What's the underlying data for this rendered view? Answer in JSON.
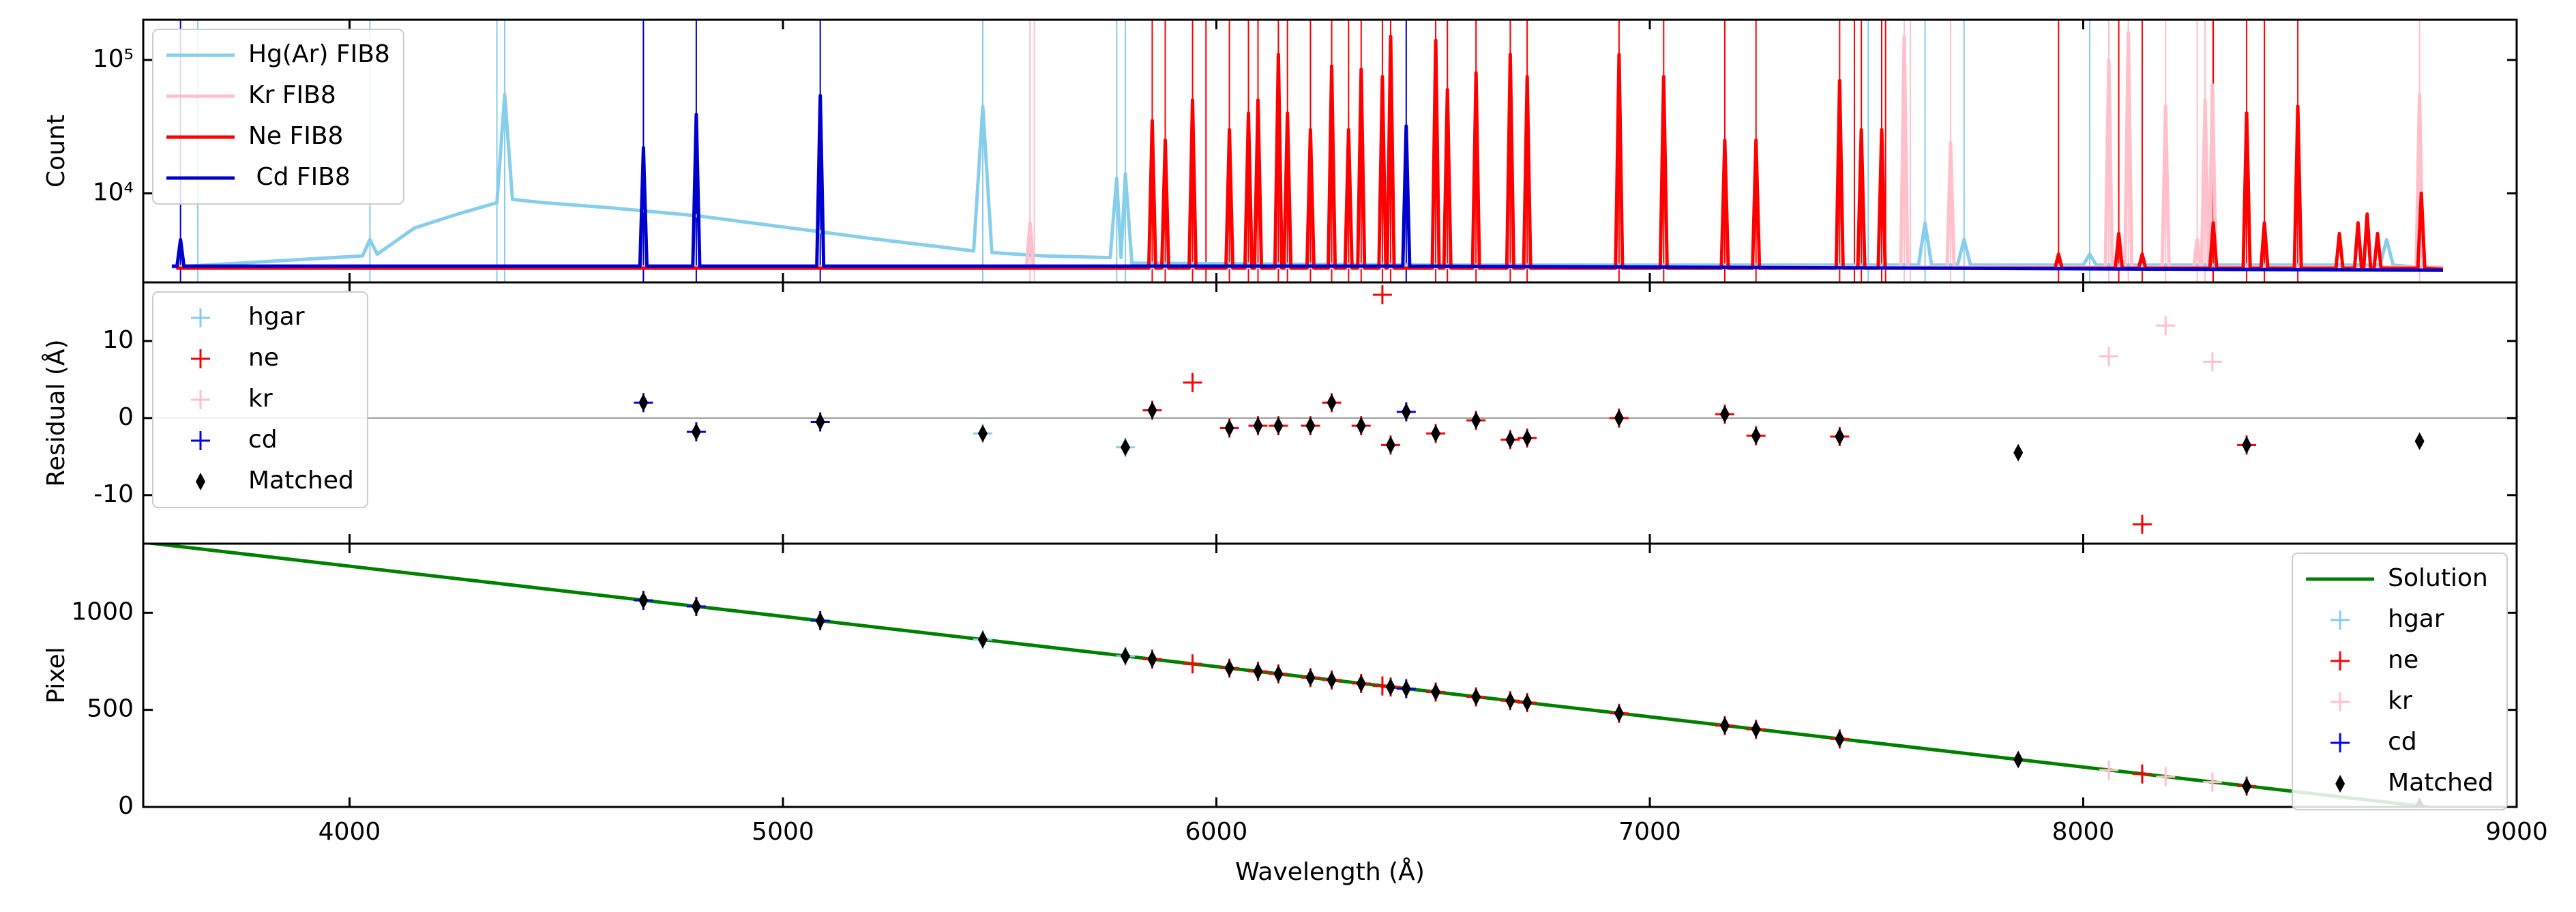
{
  "chart_data": [
    {
      "type": "line",
      "ylabel": "Count",
      "log_y": true,
      "legend": "upper left",
      "xlim": [
        3524,
        9000
      ],
      "xticks": [
        4000,
        5000,
        6000,
        7000,
        8000,
        9000
      ],
      "ylim": [
        2150,
        200000
      ],
      "yticks": [
        {
          "value": 10000,
          "label": "10⁴"
        },
        {
          "value": 100000,
          "label": "10⁵"
        }
      ],
      "series": [
        {
          "name": "Hg(Ar) FIB8",
          "color": "#87ceeb",
          "style": "line",
          "catalog_lines": [
            3650,
            4047,
            4340,
            4358,
            5461,
            5770,
            5790,
            7504,
            7635,
            7725,
            8015
          ],
          "x": [
            3590,
            4030,
            4047,
            4064,
            4150,
            4250,
            4340,
            4358,
            4376,
            4450,
            4600,
            4800,
            5000,
            5200,
            5440,
            5461,
            5482,
            5600,
            5755,
            5770,
            5780,
            5790,
            5805,
            6500,
            7000,
            7620,
            7635,
            7650,
            7710,
            7725,
            7740,
            8000,
            8015,
            8030,
            8685,
            8700,
            8715,
            8830
          ],
          "values": [
            2800,
            3400,
            4500,
            3500,
            5500,
            7000,
            8500,
            55000,
            9000,
            8500,
            7800,
            6800,
            5600,
            4600,
            3700,
            45000,
            3600,
            3400,
            3300,
            13000,
            3300,
            14000,
            3000,
            2900,
            2900,
            2900,
            6000,
            2900,
            2900,
            4500,
            2900,
            2900,
            3500,
            2900,
            2900,
            4500,
            2900,
            2700
          ]
        },
        {
          "name": "Kr FIB8",
          "color": "#ffc0cb",
          "style": "line",
          "catalog_lines": [
            5570,
            5580,
            7587,
            7601,
            7694,
            8059,
            8104,
            8190,
            8263,
            8281,
            8298,
            8776
          ],
          "x": [
            3600,
            5562,
            5570,
            5578,
            7579,
            7587,
            7595,
            7686,
            7694,
            7702,
            8051,
            8059,
            8067,
            8096,
            8104,
            8112,
            8182,
            8190,
            8198,
            8255,
            8263,
            8271,
            8273,
            8281,
            8289,
            8290,
            8298,
            8306,
            8768,
            8776,
            8784,
            8830
          ],
          "values": [
            2800,
            2800,
            6000,
            2800,
            2800,
            150000,
            2800,
            2800,
            24000,
            2800,
            2800,
            100000,
            2800,
            2800,
            160000,
            2800,
            2800,
            45000,
            2800,
            2800,
            4500,
            2800,
            2800,
            50000,
            2800,
            2800,
            65000,
            2800,
            2800,
            55000,
            2800,
            2800
          ]
        },
        {
          "name": "Ne FIB8",
          "color": "#ff0000",
          "style": "line",
          "catalog_lines": [
            5852,
            5882,
            5945,
            5976,
            6030,
            6074,
            6096,
            6143,
            6164,
            6217,
            6266,
            6305,
            6334,
            6383,
            6402,
            6506,
            6533,
            6599,
            6678,
            6717,
            6929,
            7032,
            7173,
            7245,
            7438,
            7472,
            7488,
            7535,
            7544,
            7943,
            8082,
            8136,
            8300,
            8377,
            8418,
            8495
          ],
          "x": [
            3600,
            5844,
            5852,
            5860,
            5874,
            5882,
            5890,
            5937,
            5945,
            5953,
            6022,
            6030,
            6038,
            6066,
            6074,
            6082,
            6088,
            6096,
            6104,
            6135,
            6143,
            6151,
            6156,
            6164,
            6172,
            6209,
            6217,
            6225,
            6258,
            6266,
            6274,
            6297,
            6305,
            6313,
            6326,
            6334,
            6342,
            6375,
            6383,
            6391,
            6394,
            6402,
            6410,
            6498,
            6506,
            6514,
            6525,
            6533,
            6541,
            6591,
            6599,
            6607,
            6670,
            6678,
            6686,
            6709,
            6717,
            6725,
            6921,
            6929,
            6937,
            7024,
            7032,
            7040,
            7165,
            7173,
            7181,
            7237,
            7245,
            7253,
            7430,
            7438,
            7446,
            7480,
            7488,
            7496,
            7527,
            7535,
            7543,
            7935,
            7943,
            7951,
            8074,
            8082,
            8090,
            8128,
            8136,
            8144,
            8292,
            8300,
            8308,
            8369,
            8377,
            8385,
            8410,
            8418,
            8426,
            8487,
            8495,
            8503,
            8583,
            8591,
            8599,
            8626,
            8634,
            8642,
            8647,
            8655,
            8663,
            8671,
            8679,
            8687,
            8772,
            8780,
            8788,
            8830
          ],
          "values": [
            2750,
            2750,
            35000,
            2750,
            2750,
            25000,
            2750,
            2750,
            50000,
            2750,
            2750,
            30000,
            2750,
            2750,
            40000,
            2750,
            2750,
            50000,
            2750,
            2750,
            110000,
            2750,
            2750,
            40000,
            2750,
            2750,
            30000,
            2750,
            2750,
            90000,
            2750,
            2750,
            30000,
            2750,
            2750,
            85000,
            2750,
            2750,
            75000,
            2750,
            2750,
            150000,
            2750,
            2750,
            140000,
            2750,
            2750,
            60000,
            2750,
            2750,
            80000,
            2750,
            2750,
            110000,
            2750,
            2750,
            75000,
            2750,
            2750,
            110000,
            2750,
            2750,
            75000,
            2750,
            2750,
            25000,
            2750,
            2750,
            25000,
            2750,
            2750,
            70000,
            2750,
            2750,
            30000,
            2750,
            2750,
            30000,
            2750,
            2750,
            3500,
            2750,
            2750,
            5000,
            2750,
            2750,
            3500,
            2750,
            2750,
            6000,
            2750,
            2750,
            40000,
            2750,
            2750,
            6000,
            2750,
            2750,
            45000,
            2750,
            2750,
            5000,
            2750,
            2750,
            6000,
            2750,
            2750,
            7000,
            2750,
            2750,
            5000,
            2750,
            2750,
            10000,
            2750,
            2700
          ]
        },
        {
          "name": " Cd FIB8",
          "color": "#0000cd",
          "style": "line",
          "catalog_lines": [
            3610,
            4678,
            4800,
            5086,
            6438
          ],
          "x": [
            3590,
            3602,
            3610,
            3618,
            4670,
            4678,
            4686,
            4792,
            4800,
            4808,
            5078,
            5086,
            5094,
            6430,
            6438,
            6446,
            8830
          ],
          "values": [
            2850,
            2850,
            4500,
            2850,
            2850,
            22000,
            2850,
            2850,
            39000,
            2850,
            2850,
            54000,
            2850,
            2850,
            32000,
            2850,
            2650
          ]
        }
      ]
    },
    {
      "type": "scatter",
      "ylabel": "Residual (Å)",
      "legend": "upper left",
      "hline": 0,
      "xlim": [
        3524,
        9000
      ],
      "xticks": [
        4000,
        5000,
        6000,
        7000,
        8000,
        9000
      ],
      "ylim": [
        -16.3,
        17.6
      ],
      "yticks": [
        -10,
        0,
        10
      ],
      "series": [
        {
          "name": "hgar",
          "color": "#87ceeb",
          "style": "plus",
          "x": [
            5461,
            5790
          ],
          "values": [
            -2,
            -3.8
          ]
        },
        {
          "name": "ne",
          "color": "#ff0000",
          "style": "plus",
          "x": [
            5852,
            5945,
            6030,
            6096,
            6143,
            6217,
            6266,
            6334,
            6383,
            6402,
            6506,
            6599,
            6678,
            6717,
            6929,
            7173,
            7245,
            7438,
            8136,
            8377
          ],
          "values": [
            1,
            4.6,
            -1.3,
            -1,
            -1,
            -1,
            2,
            -1,
            16,
            -3.5,
            -2,
            -0.3,
            -2.8,
            -2.6,
            0,
            0.5,
            -2.3,
            -2.4,
            -13.8,
            -3.5
          ]
        },
        {
          "name": "kr",
          "color": "#ffc0cb",
          "style": "plus",
          "x": [
            8059,
            8190,
            8298
          ],
          "values": [
            8,
            12,
            7.3
          ]
        },
        {
          "name": "cd",
          "color": "#0000ff",
          "style": "plus",
          "x": [
            4678,
            4800,
            5086,
            6438
          ],
          "values": [
            2,
            -1.8,
            -0.5,
            0.8
          ]
        },
        {
          "name": "Matched",
          "color": "#000000",
          "style": "diamond",
          "x": [
            4678,
            4800,
            5086,
            5461,
            5790,
            5852,
            6030,
            6096,
            6143,
            6217,
            6266,
            6334,
            6402,
            6438,
            6506,
            6599,
            6678,
            6717,
            6929,
            7173,
            7245,
            7438,
            7850,
            8377,
            8776
          ],
          "values": [
            2,
            -1.8,
            -0.5,
            -2,
            -3.8,
            1,
            -1.3,
            -1,
            -1,
            -1,
            2,
            -1,
            -3.5,
            0.8,
            -2,
            -0.3,
            -2.8,
            -2.6,
            0,
            0.5,
            -2.3,
            -2.4,
            -4.5,
            -3.5,
            -3
          ]
        }
      ]
    },
    {
      "type": "scatter",
      "ylabel": "Pixel",
      "xlabel": "Wavelength (Å)",
      "legend": "upper right",
      "xlim": [
        3524,
        9000
      ],
      "xticks": [
        4000,
        5000,
        6000,
        7000,
        8000,
        9000
      ],
      "ylim": [
        0,
        1356
      ],
      "yticks": [
        0,
        500,
        1000
      ],
      "series": [
        {
          "name": "Solution",
          "color": "#008000",
          "style": "line",
          "x": [
            3524,
            8795
          ],
          "values": [
            1363,
            0
          ]
        },
        {
          "name": "hgar",
          "color": "#87ceeb",
          "style": "plus",
          "x": [
            5461,
            5790
          ],
          "values": [
            862,
            777
          ]
        },
        {
          "name": "ne",
          "color": "#ff0000",
          "style": "plus",
          "x": [
            5852,
            5945,
            6030,
            6096,
            6143,
            6217,
            6266,
            6334,
            6383,
            6402,
            6506,
            6599,
            6678,
            6717,
            6929,
            7173,
            7245,
            7438,
            8136,
            8377
          ],
          "values": [
            761,
            737,
            715,
            698,
            685,
            666,
            654,
            636,
            623,
            618,
            592,
            567,
            547,
            537,
            482,
            419,
            400,
            350,
            170,
            107
          ]
        },
        {
          "name": "kr",
          "color": "#ffc0cb",
          "style": "plus",
          "x": [
            8059,
            8190,
            8298
          ],
          "values": [
            190,
            156,
            128
          ]
        },
        {
          "name": "cd",
          "color": "#0000ff",
          "style": "plus",
          "x": [
            4678,
            4800,
            5086,
            6438
          ],
          "values": [
            1064,
            1033,
            959,
            609
          ]
        },
        {
          "name": "Matched",
          "color": "#000000",
          "style": "diamond",
          "x": [
            4678,
            4800,
            5086,
            5461,
            5790,
            5852,
            6030,
            6096,
            6143,
            6217,
            6266,
            6334,
            6402,
            6438,
            6506,
            6599,
            6678,
            6717,
            6929,
            7173,
            7245,
            7438,
            7850,
            8377,
            8776
          ],
          "values": [
            1064,
            1033,
            959,
            862,
            777,
            761,
            715,
            698,
            685,
            666,
            654,
            636,
            618,
            609,
            592,
            567,
            547,
            537,
            482,
            419,
            400,
            350,
            244,
            107,
            4
          ]
        }
      ]
    }
  ]
}
